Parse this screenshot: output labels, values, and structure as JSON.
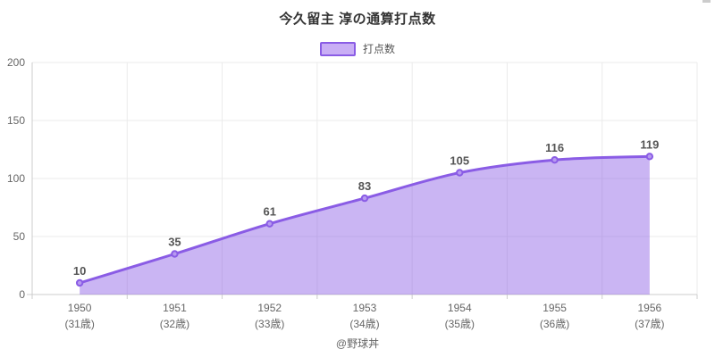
{
  "title": "今久留主 淳の通算打点数",
  "legend": {
    "label": "打点数"
  },
  "footer": "@野球丼",
  "colors": {
    "line": "#8a5ce5",
    "area": "rgba(138,92,229,0.45)",
    "marker_fill": "#b79af0",
    "data_label": "#555555",
    "axis": "#cccccc",
    "grid": "#ebebeb",
    "tick_text": "#666666",
    "title_text": "#333333"
  },
  "chart_data": {
    "type": "area",
    "title": "今久留主 淳の通算打点数",
    "legend_entries": [
      "打点数"
    ],
    "legend_position": "top",
    "categories": [
      "1950",
      "1951",
      "1952",
      "1953",
      "1954",
      "1955",
      "1956"
    ],
    "category_sublabels": [
      "(31歳)",
      "(32歳)",
      "(33歳)",
      "(34歳)",
      "(35歳)",
      "(36歳)",
      "(37歳)"
    ],
    "series": [
      {
        "name": "打点数",
        "values": [
          10,
          35,
          61,
          83,
          105,
          116,
          119
        ]
      }
    ],
    "data_labels": [
      "10",
      "35",
      "61",
      "83",
      "105",
      "116",
      "119"
    ],
    "ylim": [
      0,
      200
    ],
    "yticks": [
      0,
      50,
      100,
      150,
      200
    ],
    "xlabel": "",
    "ylabel": "",
    "grid": true,
    "smooth": true
  }
}
